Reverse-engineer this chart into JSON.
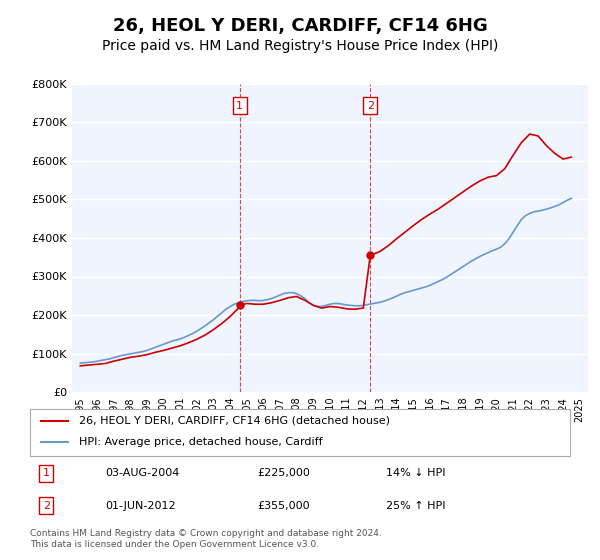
{
  "title": "26, HEOL Y DERI, CARDIFF, CF14 6HG",
  "subtitle": "Price paid vs. HM Land Registry's House Price Index (HPI)",
  "title_fontsize": 13,
  "subtitle_fontsize": 10,
  "ylabel": "",
  "ylim": [
    0,
    800000
  ],
  "yticks": [
    0,
    100000,
    200000,
    300000,
    400000,
    500000,
    600000,
    700000,
    800000
  ],
  "ytick_labels": [
    "£0",
    "£100K",
    "£200K",
    "£300K",
    "£400K",
    "£500K",
    "£600K",
    "£700K",
    "£800K"
  ],
  "xlim_start": 1994.5,
  "xlim_end": 2025.5,
  "background_color": "#ffffff",
  "plot_bg_color": "#f0f4ff",
  "grid_color": "#ffffff",
  "red_line_color": "#cc0000",
  "blue_line_color": "#6699cc",
  "transaction1_x": 2004.58,
  "transaction1_y": 225000,
  "transaction1_label": "1",
  "transaction1_date": "03-AUG-2004",
  "transaction1_price": "£225,000",
  "transaction1_hpi": "14% ↓ HPI",
  "transaction2_x": 2012.42,
  "transaction2_y": 355000,
  "transaction2_label": "2",
  "transaction2_date": "01-JUN-2012",
  "transaction2_price": "£355,000",
  "transaction2_hpi": "25% ↑ HPI",
  "legend_label_red": "26, HEOL Y DERI, CARDIFF, CF14 6HG (detached house)",
  "legend_label_blue": "HPI: Average price, detached house, Cardiff",
  "footer": "Contains HM Land Registry data © Crown copyright and database right 2024.\nThis data is licensed under the Open Government Licence v3.0.",
  "hpi_years": [
    1995,
    1995.25,
    1995.5,
    1995.75,
    1996,
    1996.25,
    1996.5,
    1996.75,
    1997,
    1997.25,
    1997.5,
    1997.75,
    1998,
    1998.25,
    1998.5,
    1998.75,
    1999,
    1999.25,
    1999.5,
    1999.75,
    2000,
    2000.25,
    2000.5,
    2000.75,
    2001,
    2001.25,
    2001.5,
    2001.75,
    2002,
    2002.25,
    2002.5,
    2002.75,
    2003,
    2003.25,
    2003.5,
    2003.75,
    2004,
    2004.25,
    2004.5,
    2004.75,
    2005,
    2005.25,
    2005.5,
    2005.75,
    2006,
    2006.25,
    2006.5,
    2006.75,
    2007,
    2007.25,
    2007.5,
    2007.75,
    2008,
    2008.25,
    2008.5,
    2008.75,
    2009,
    2009.25,
    2009.5,
    2009.75,
    2010,
    2010.25,
    2010.5,
    2010.75,
    2011,
    2011.25,
    2011.5,
    2011.75,
    2012,
    2012.25,
    2012.5,
    2012.75,
    2013,
    2013.25,
    2013.5,
    2013.75,
    2014,
    2014.25,
    2014.5,
    2014.75,
    2015,
    2015.25,
    2015.5,
    2015.75,
    2016,
    2016.25,
    2016.5,
    2016.75,
    2017,
    2017.25,
    2017.5,
    2017.75,
    2018,
    2018.25,
    2018.5,
    2018.75,
    2019,
    2019.25,
    2019.5,
    2019.75,
    2020,
    2020.25,
    2020.5,
    2020.75,
    2021,
    2021.25,
    2021.5,
    2021.75,
    2022,
    2022.25,
    2022.5,
    2022.75,
    2023,
    2023.25,
    2023.5,
    2023.75,
    2024,
    2024.25,
    2024.5
  ],
  "hpi_values": [
    75000,
    76000,
    77000,
    78000,
    80000,
    82000,
    84000,
    86000,
    89000,
    92000,
    95000,
    97000,
    99000,
    101000,
    103000,
    105000,
    108000,
    112000,
    116000,
    120000,
    124000,
    128000,
    132000,
    135000,
    138000,
    142000,
    147000,
    152000,
    158000,
    165000,
    172000,
    180000,
    188000,
    197000,
    206000,
    215000,
    222000,
    228000,
    232000,
    235000,
    237000,
    238000,
    238000,
    237000,
    238000,
    240000,
    243000,
    247000,
    252000,
    256000,
    258000,
    258000,
    255000,
    250000,
    242000,
    232000,
    225000,
    222000,
    222000,
    225000,
    228000,
    230000,
    230000,
    228000,
    226000,
    225000,
    224000,
    224000,
    225000,
    227000,
    229000,
    231000,
    233000,
    236000,
    240000,
    244000,
    249000,
    254000,
    258000,
    261000,
    264000,
    267000,
    270000,
    273000,
    277000,
    282000,
    287000,
    292000,
    298000,
    305000,
    312000,
    319000,
    326000,
    333000,
    340000,
    346000,
    352000,
    357000,
    362000,
    367000,
    371000,
    376000,
    385000,
    398000,
    415000,
    432000,
    448000,
    458000,
    464000,
    468000,
    470000,
    472000,
    475000,
    478000,
    482000,
    486000,
    492000,
    498000,
    503000
  ],
  "prop_years": [
    1995,
    1995.5,
    1996,
    1996.5,
    1997,
    1997.5,
    1998,
    1998.5,
    1999,
    1999.5,
    2000,
    2000.5,
    2001,
    2001.5,
    2002,
    2002.5,
    2003,
    2003.5,
    2004,
    2004.5,
    2004.58,
    2005,
    2005.5,
    2006,
    2006.5,
    2007,
    2007.5,
    2008,
    2008.5,
    2009,
    2009.5,
    2010,
    2010.5,
    2011,
    2011.5,
    2012,
    2012.42,
    2013,
    2013.5,
    2014,
    2014.5,
    2015,
    2015.5,
    2016,
    2016.5,
    2017,
    2017.5,
    2018,
    2018.5,
    2019,
    2019.5,
    2020,
    2020.5,
    2021,
    2021.5,
    2022,
    2022.5,
    2023,
    2023.5,
    2024,
    2024.5
  ],
  "prop_values": [
    68000,
    70000,
    72000,
    74000,
    80000,
    85000,
    90000,
    93000,
    97000,
    103000,
    108000,
    114000,
    120000,
    128000,
    137000,
    148000,
    162000,
    178000,
    196000,
    218000,
    225000,
    230000,
    228000,
    228000,
    232000,
    238000,
    245000,
    248000,
    238000,
    225000,
    218000,
    222000,
    220000,
    216000,
    215000,
    218000,
    355000,
    365000,
    380000,
    398000,
    415000,
    432000,
    448000,
    462000,
    475000,
    490000,
    505000,
    520000,
    535000,
    548000,
    558000,
    562000,
    580000,
    615000,
    648000,
    670000,
    665000,
    640000,
    620000,
    605000,
    610000
  ]
}
